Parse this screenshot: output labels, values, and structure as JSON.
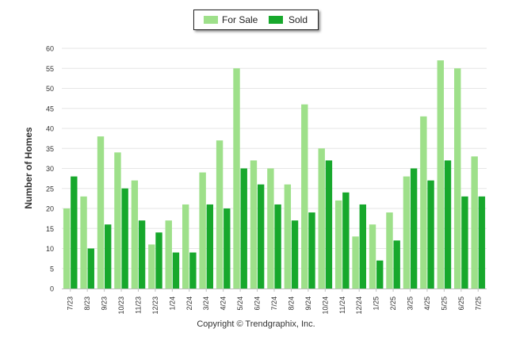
{
  "chart_data": {
    "type": "bar",
    "ylabel": "Number of Homes",
    "xlabel": "",
    "ylim": [
      0,
      60
    ],
    "yticks": [
      0,
      5,
      10,
      15,
      20,
      25,
      30,
      35,
      40,
      45,
      50,
      55,
      60
    ],
    "grid": true,
    "legend_position": "top-center",
    "categories": [
      "7/23",
      "8/23",
      "9/23",
      "10/23",
      "11/23",
      "12/23",
      "1/24",
      "2/24",
      "3/24",
      "4/24",
      "5/24",
      "6/24",
      "7/24",
      "8/24",
      "9/24",
      "10/24",
      "11/24",
      "12/24",
      "1/25",
      "2/25",
      "3/25",
      "4/25",
      "5/25",
      "6/25",
      "7/25"
    ],
    "series": [
      {
        "name": "For Sale",
        "color": "#9ee08a",
        "values": [
          20,
          23,
          38,
          34,
          27,
          11,
          17,
          21,
          29,
          37,
          55,
          32,
          30,
          26,
          46,
          35,
          22,
          13,
          16,
          19,
          28,
          43,
          57,
          55,
          33
        ]
      },
      {
        "name": "Sold",
        "color": "#17a82c",
        "values": [
          28,
          10,
          16,
          25,
          17,
          14,
          9,
          9,
          21,
          20,
          30,
          26,
          21,
          17,
          19,
          32,
          24,
          21,
          7,
          12,
          30,
          27,
          32,
          23,
          23
        ]
      }
    ]
  },
  "legend": {
    "for_sale": "For Sale",
    "sold": "Sold"
  },
  "footer": {
    "copyright": "Copyright © Trendgraphix, Inc."
  }
}
